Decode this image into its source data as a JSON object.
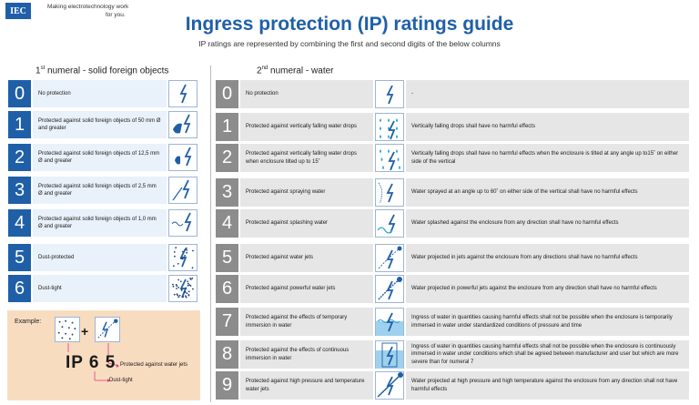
{
  "header": {
    "logo": "IEC",
    "tagline_1": "Making  electrotechnology work",
    "tagline_2": "for you.",
    "title": "Ingress protection (IP) ratings guide",
    "subtitle": "IP ratings are represented by combining the first and second digits of the below columns"
  },
  "solids": {
    "heading_ord": "1",
    "heading_sup": "st",
    "heading_rest": " numeral - solid foreign objects",
    "rows": [
      {
        "n": "0",
        "text": "No protection"
      },
      {
        "n": "1",
        "text": "Protected against solid foreign objects of 50 mm Ø and greater"
      },
      {
        "n": "2",
        "text": "Protected against solid foreign objects of 12,5 mm Ø and greater"
      },
      {
        "n": "3",
        "text": "Protected against solid foreign objects of 2,5 mm Ø and greater"
      },
      {
        "n": "4",
        "text": "Protected against solid foreign objects of 1,0 mm Ø and greater"
      },
      {
        "n": "5",
        "text": "Dust-protected"
      },
      {
        "n": "6",
        "text": "Dust-tight"
      }
    ]
  },
  "water": {
    "heading_ord": "2",
    "heading_sup": "nd",
    "heading_rest": " numeral - water",
    "rows": [
      {
        "n": "0",
        "text": "No protection",
        "detail": "-"
      },
      {
        "n": "1",
        "text": "Protected against vertically falling water drops",
        "detail": "Vertically falling drops shall have no harmful effects"
      },
      {
        "n": "2",
        "text": "Protected against vertically falling water drops when enclosure tilted up to 15˚",
        "detail": "Vertically falling drops shall have no harmful effects when the enclosure is tilted at any angle up to15˚ on either side of the vertical"
      },
      {
        "n": "3",
        "text": "Protected against spraying water",
        "detail": "Water sprayed at an angle up to 60˚ on either side of the vertical shall have no harmful effects"
      },
      {
        "n": "4",
        "text": "Protected against splashing water",
        "detail": "Water splashed against the enclosure from any direction shall have no harmful effects"
      },
      {
        "n": "5",
        "text": "Protected against water jets",
        "detail": "Water projected in jets against the enclosure from any directions shall have no harmful effects"
      },
      {
        "n": "6",
        "text": "Protected against powerful water jets",
        "detail": "Water projected in powerful jets against the enclosure from any direction shall have no harmful effects"
      },
      {
        "n": "7",
        "text": "Protected against the effects of temporary immersion in water",
        "detail": "Ingress of water in quantities causing harmful effects shall not be possible when the enclosure is temporarily immersed in water under standardized conditions of pressure and time"
      },
      {
        "n": "8",
        "text": "Protected against the effects of continuous immersion in water",
        "detail": "Ingress of water in quantities causing harmful effects shall not be possible when the enclosure is continuously immersed in water under conditions which shall be agreed between manufacturer and user but which are more severe than for numeral 7"
      },
      {
        "n": "9",
        "text": "Protected against high pressure and temperature water jets",
        "detail": "Water projected at high pressure and high temperature against the enclosure from any direction shall not have harmful effects"
      }
    ]
  },
  "example": {
    "label": "Example:",
    "plus": "+",
    "ip_code": "IP 6 5",
    "annotation_water": "Protected against water jets",
    "annotation_dust": "Dust-tight"
  },
  "colors": {
    "blue": "#1f5fa8",
    "grey": "#8c8c8c",
    "example_bg": "#f8dcc0",
    "arrow": "#e8388a"
  }
}
